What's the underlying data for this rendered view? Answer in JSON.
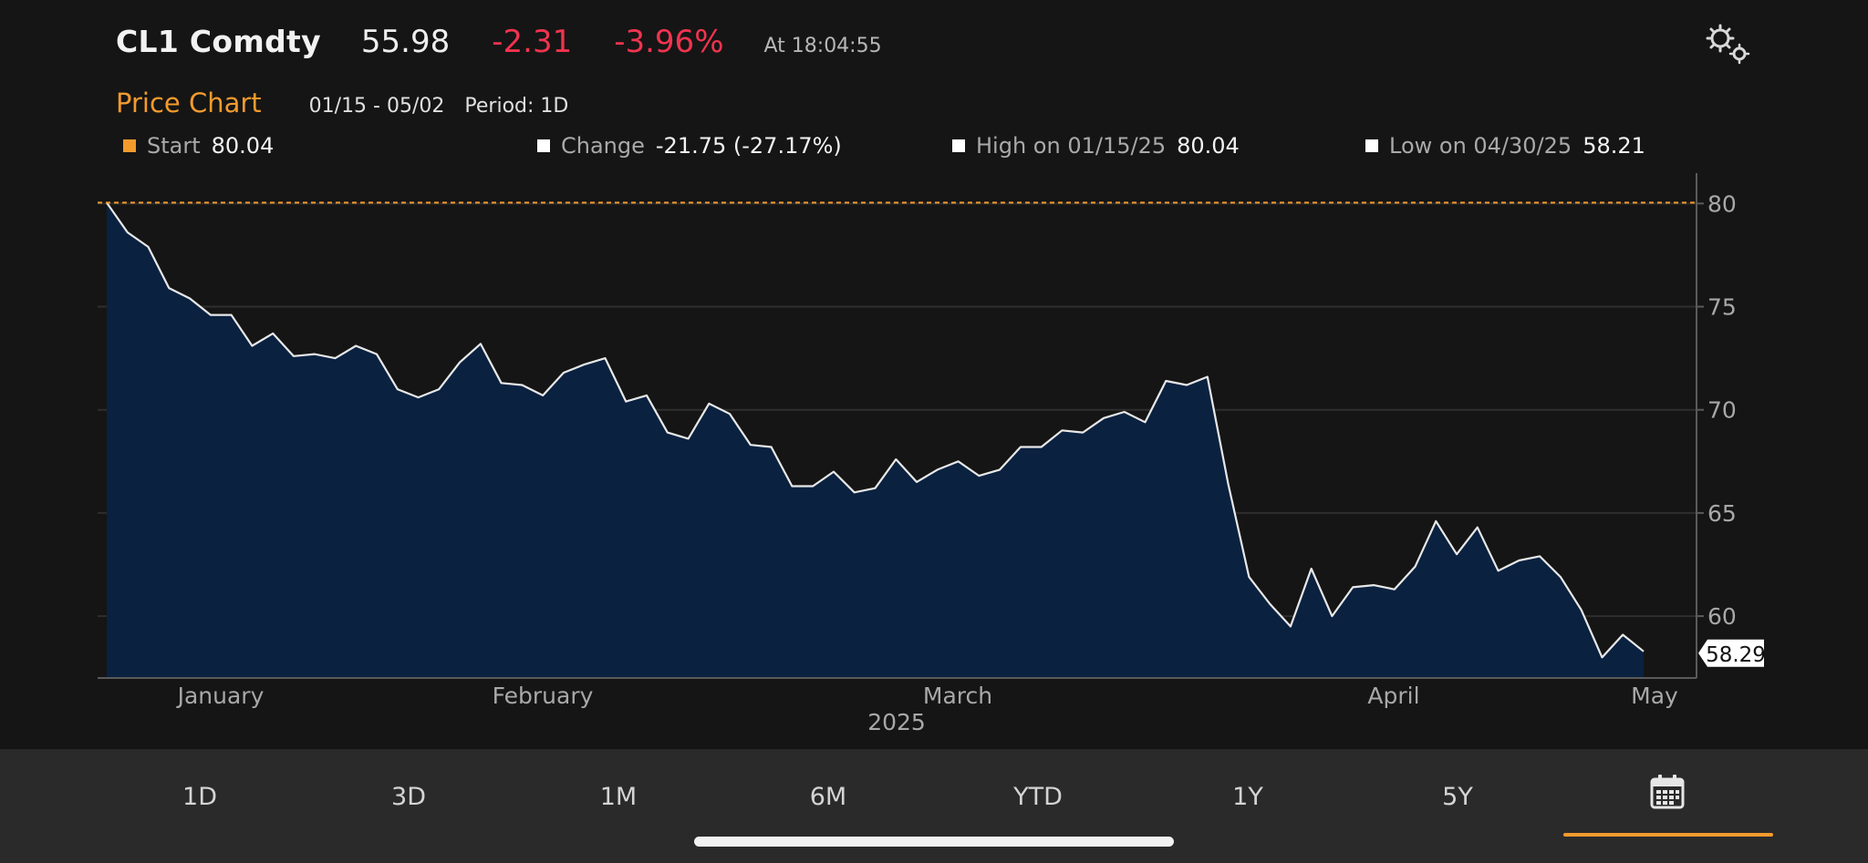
{
  "header": {
    "ticker": "CL1 Comdty",
    "last_price": "55.98",
    "change": "-2.31",
    "change_pct": "-3.96%",
    "as_of": "At 18:04:55"
  },
  "subheader": {
    "title": "Price Chart",
    "date_range": "01/15 - 05/02",
    "period": "Period: 1D"
  },
  "legend": [
    {
      "label": "Start",
      "value": "80.04",
      "color": "#f39a2d"
    },
    {
      "label": "Change",
      "value": "-21.75 (-27.17%)",
      "color": "#ffffff"
    },
    {
      "label": "High on 01/15/25",
      "value": "80.04",
      "color": "#ffffff"
    },
    {
      "label": "Low on 04/30/25",
      "value": "58.21",
      "color": "#ffffff"
    }
  ],
  "footer": {
    "buttons": [
      "1D",
      "3D",
      "1M",
      "6M",
      "YTD",
      "1Y",
      "5Y"
    ],
    "active": "calendar",
    "calendar_icon": "calendar-icon"
  },
  "colors": {
    "accent": "#f39a2d",
    "negative": "#f0344f",
    "area_fill": "#0a2140",
    "line": "#e8e8e8",
    "background": "#151515"
  },
  "chart_data": {
    "type": "area",
    "year_label": "2025",
    "x_labels": [
      "January",
      "February",
      "March",
      "April",
      "May"
    ],
    "ylim": [
      57,
      80.5
    ],
    "y_ticks": [
      80,
      75,
      70,
      65,
      60
    ],
    "reference_line": 80.04,
    "last_value_label": "58.29",
    "grid": true,
    "series": [
      {
        "values": [
          80.04,
          78.6,
          77.9,
          75.9,
          75.4,
          74.6,
          74.6,
          73.1,
          73.7,
          72.6,
          72.7,
          72.5,
          73.1,
          72.7,
          71.0,
          70.6,
          71.0,
          72.3,
          73.2,
          71.3,
          71.2,
          70.7,
          71.8,
          72.2,
          72.5,
          70.4,
          70.7,
          68.9,
          68.6,
          70.3,
          69.8,
          68.3,
          68.2,
          66.3,
          66.3,
          67.0,
          66.0,
          66.2,
          67.6,
          66.5,
          67.1,
          67.5,
          66.8,
          67.1,
          68.2,
          68.2,
          69.0,
          68.9,
          69.6,
          69.9,
          69.4,
          71.4,
          71.2,
          71.6,
          66.4,
          61.9,
          60.6,
          59.5,
          62.3,
          60.0,
          61.4,
          61.5,
          61.3,
          62.4,
          64.6,
          63.0,
          64.3,
          62.2,
          62.7,
          62.9,
          61.9,
          60.3,
          58.0,
          59.1,
          58.29
        ]
      }
    ]
  }
}
